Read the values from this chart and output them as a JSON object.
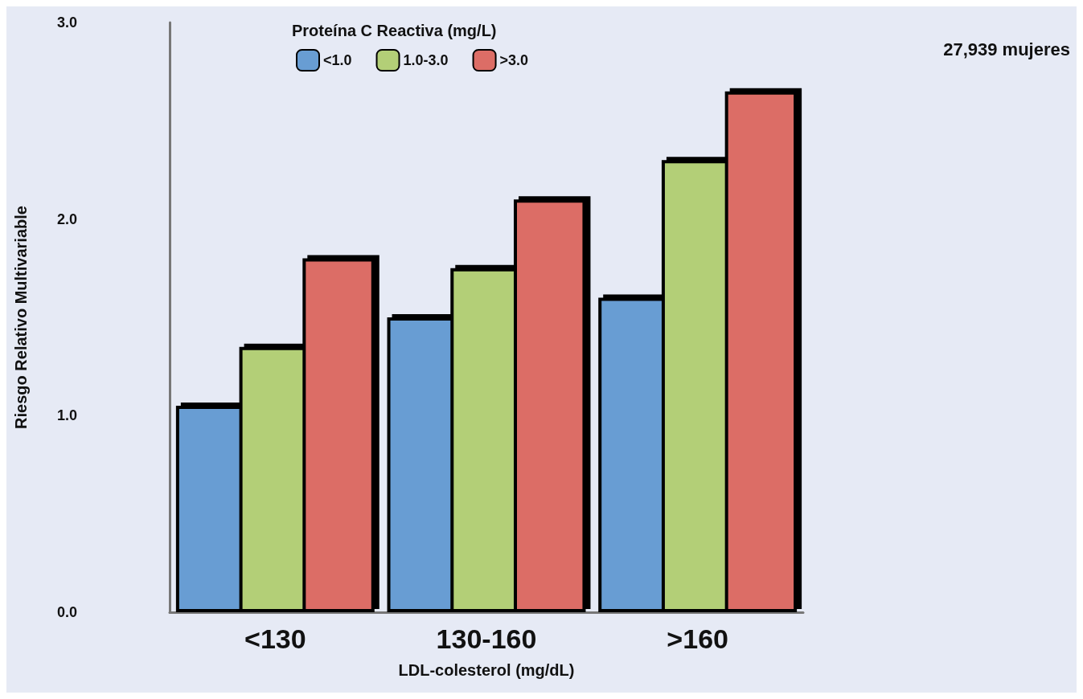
{
  "chart_data": {
    "type": "bar",
    "xlabel": "LDL-colesterol (mg/dL)",
    "ylabel": "Riesgo Relativo Multivariable",
    "legend_title": "Proteína C Reactiva (mg/L)",
    "annotations": [
      "27,939 mujeres"
    ],
    "categories": [
      "<130",
      "130-160",
      ">160"
    ],
    "series": [
      {
        "name": "<1.0",
        "color": "#689dd3",
        "values": [
          1.05,
          1.5,
          1.6
        ]
      },
      {
        "name": "1.0-3.0",
        "color": "#b3cf77",
        "values": [
          1.35,
          1.75,
          2.3
        ]
      },
      {
        "name": ">3.0",
        "color": "#dc6d66",
        "values": [
          1.8,
          2.1,
          2.65
        ]
      }
    ],
    "ylim": [
      0,
      3
    ],
    "yticks": [
      {
        "value": 0,
        "label": "0.0"
      },
      {
        "value": 1,
        "label": "1.0"
      },
      {
        "value": 2,
        "label": "2.0"
      },
      {
        "value": 3,
        "label": "3.0"
      }
    ],
    "grid": false,
    "legend": "top"
  }
}
